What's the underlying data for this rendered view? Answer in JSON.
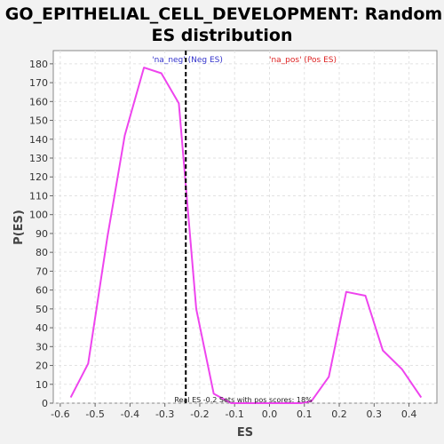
{
  "chart_data": {
    "type": "line",
    "title_lines": [
      "GO_EPITHELIAL_CELL_DEVELOPMENT: Random",
      "ES distribution"
    ],
    "xlabel": "ES",
    "ylabel": "P(ES)",
    "xlim": [
      -0.62,
      0.48
    ],
    "ylim": [
      0,
      187
    ],
    "x_ticks": [
      -0.6,
      -0.5,
      -0.4,
      -0.3,
      -0.2,
      -0.1,
      0.0,
      0.1,
      0.2,
      0.3,
      0.4
    ],
    "x_tick_labels": [
      "-0.6",
      "-0.5",
      "-0.4",
      "-0.3",
      "-0.2",
      "-0.1",
      "0.0",
      "0.1",
      "0.2",
      "0.3",
      "0.4"
    ],
    "y_ticks": [
      0,
      10,
      20,
      30,
      40,
      50,
      60,
      70,
      80,
      90,
      100,
      110,
      120,
      130,
      140,
      150,
      160,
      170,
      180
    ],
    "y_tick_labels": [
      "0",
      "10",
      "20",
      "30",
      "40",
      "50",
      "60",
      "70",
      "80",
      "90",
      "100",
      "110",
      "120",
      "130",
      "140",
      "150",
      "160",
      "170",
      "180"
    ],
    "grid": true,
    "series": [
      {
        "color": "#ee44ee",
        "x": [
          -0.57,
          -0.52,
          -0.465,
          -0.415,
          -0.36,
          -0.31,
          -0.26,
          -0.21,
          -0.16,
          -0.11,
          -0.06,
          -0.01,
          0.04,
          0.09,
          0.12,
          0.17,
          0.22,
          0.275,
          0.325,
          0.38,
          0.435
        ],
        "y": [
          3,
          21,
          88,
          142,
          178,
          175,
          159,
          50,
          5,
          0,
          0,
          0,
          0,
          0,
          1,
          14,
          59,
          57,
          28,
          18,
          3
        ]
      }
    ],
    "vline": {
      "x": -0.24,
      "color": "#000000",
      "style": "dashed"
    },
    "annotations": {
      "neg": {
        "text": "'na_neg' (Neg ES)",
        "color": "#3333cc"
      },
      "pos": {
        "text": "'na_pos' (Pos ES)",
        "color": "#dd2222"
      },
      "footer": "Real ES -0.2  Sets with pos scores: 18%"
    },
    "colors": {
      "background": "#f2f2f2",
      "plot_background": "#ffffff",
      "grid": "#e2e2e2"
    }
  }
}
